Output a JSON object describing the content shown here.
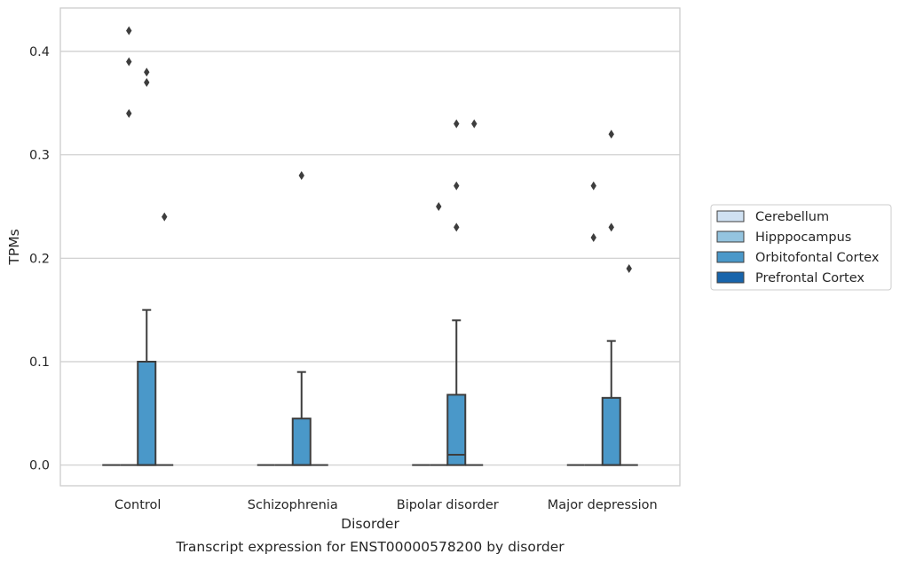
{
  "chart_data": {
    "type": "box",
    "title": "",
    "caption": "Transcript expression for ENST00000578200 by disorder",
    "xlabel": "Disorder",
    "ylabel": "TPMs",
    "ylim": [
      -0.02,
      0.442
    ],
    "yticks": [
      0.0,
      0.1,
      0.2,
      0.3,
      0.4
    ],
    "ytick_labels": [
      "0.0",
      "0.1",
      "0.2",
      "0.3",
      "0.4"
    ],
    "grid": "y",
    "legend_position": "right",
    "categories": [
      "Control",
      "Schizophrenia",
      "Bipolar disorder",
      "Major depression"
    ],
    "series": [
      {
        "name": "Cerebellum",
        "color": "#d0e1f2",
        "boxes": [
          {
            "q1": 0,
            "median": 0,
            "q3": 0,
            "whisker_low": 0,
            "whisker_high": 0,
            "outliers": []
          },
          {
            "q1": 0,
            "median": 0,
            "q3": 0,
            "whisker_low": 0,
            "whisker_high": 0,
            "outliers": []
          },
          {
            "q1": 0,
            "median": 0,
            "q3": 0,
            "whisker_low": 0,
            "whisker_high": 0,
            "outliers": []
          },
          {
            "q1": 0,
            "median": 0,
            "q3": 0,
            "whisker_low": 0,
            "whisker_high": 0,
            "outliers": []
          }
        ]
      },
      {
        "name": "Hipppocampus",
        "color": "#94c4df",
        "boxes": [
          {
            "q1": 0,
            "median": 0,
            "q3": 0,
            "whisker_low": 0,
            "whisker_high": 0,
            "outliers": [
              0.42,
              0.39,
              0.34
            ]
          },
          {
            "q1": 0,
            "median": 0,
            "q3": 0,
            "whisker_low": 0,
            "whisker_high": 0,
            "outliers": []
          },
          {
            "q1": 0,
            "median": 0,
            "q3": 0,
            "whisker_low": 0,
            "whisker_high": 0,
            "outliers": [
              0.25
            ]
          },
          {
            "q1": 0,
            "median": 0,
            "q3": 0,
            "whisker_low": 0,
            "whisker_high": 0,
            "outliers": [
              0.27,
              0.22
            ]
          }
        ]
      },
      {
        "name": "Orbitofontal Cortex",
        "color": "#4a98c9",
        "boxes": [
          {
            "q1": 0,
            "median": 0,
            "q3": 0.1,
            "whisker_low": 0,
            "whisker_high": 0.15,
            "outliers": [
              0.38,
              0.37
            ]
          },
          {
            "q1": 0,
            "median": 0,
            "q3": 0.045,
            "whisker_low": 0,
            "whisker_high": 0.09,
            "outliers": [
              0.28
            ]
          },
          {
            "q1": 0,
            "median": 0.01,
            "q3": 0.068,
            "whisker_low": 0,
            "whisker_high": 0.14,
            "outliers": [
              0.33,
              0.27,
              0.23
            ]
          },
          {
            "q1": 0,
            "median": 0,
            "q3": 0.065,
            "whisker_low": 0,
            "whisker_high": 0.12,
            "outliers": [
              0.32,
              0.23
            ]
          }
        ]
      },
      {
        "name": "Prefrontal Cortex",
        "color": "#1764ab",
        "boxes": [
          {
            "q1": 0,
            "median": 0,
            "q3": 0,
            "whisker_low": 0,
            "whisker_high": 0,
            "outliers": [
              0.24
            ]
          },
          {
            "q1": 0,
            "median": 0,
            "q3": 0,
            "whisker_low": 0,
            "whisker_high": 0,
            "outliers": []
          },
          {
            "q1": 0,
            "median": 0,
            "q3": 0,
            "whisker_low": 0,
            "whisker_high": 0,
            "outliers": [
              0.33
            ]
          },
          {
            "q1": 0,
            "median": 0,
            "q3": 0,
            "whisker_low": 0,
            "whisker_high": 0,
            "outliers": [
              0.19
            ]
          }
        ]
      }
    ]
  }
}
